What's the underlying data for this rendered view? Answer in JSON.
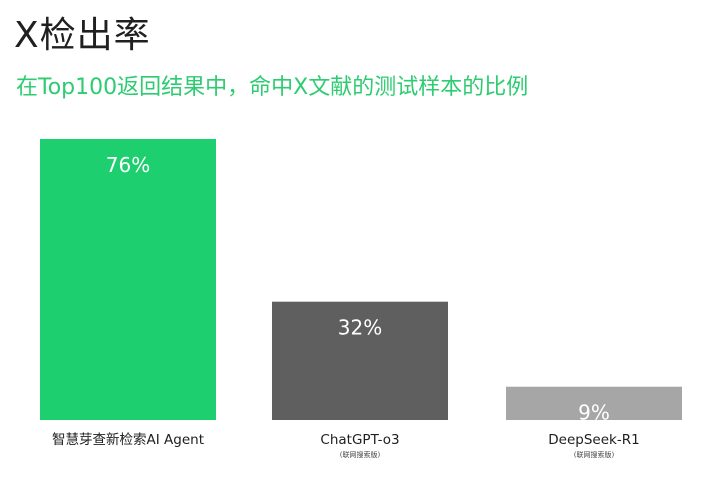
{
  "title": "X检出率",
  "subtitle": "在Top100返回结果中，命中X文献的测试样本的比例",
  "colors": {
    "title": "#202020",
    "subtitle": "#2ecc71",
    "bar_1": "#1ecf6f",
    "bar_2": "#5f5f5f",
    "bar_3": "#a6a6a6"
  },
  "chart_data": {
    "type": "bar",
    "title": "X检出率",
    "subtitle": "在Top100返回结果中，命中X文献的测试样本的比例",
    "categories": [
      "智慧芽查新检索AI Agent",
      "ChatGPT-o3",
      "DeepSeek-R1"
    ],
    "sublabels": [
      "",
      "(联网搜索版)",
      "(联网搜索版)"
    ],
    "values": [
      76,
      32,
      9
    ],
    "value_labels": [
      "76%",
      "32%",
      "9%"
    ],
    "bar_colors": [
      "#1ecf6f",
      "#5f5f5f",
      "#a6a6a6"
    ],
    "ylim": [
      0,
      80
    ],
    "grid": false,
    "legend": "none",
    "xlabel": "",
    "ylabel": ""
  }
}
